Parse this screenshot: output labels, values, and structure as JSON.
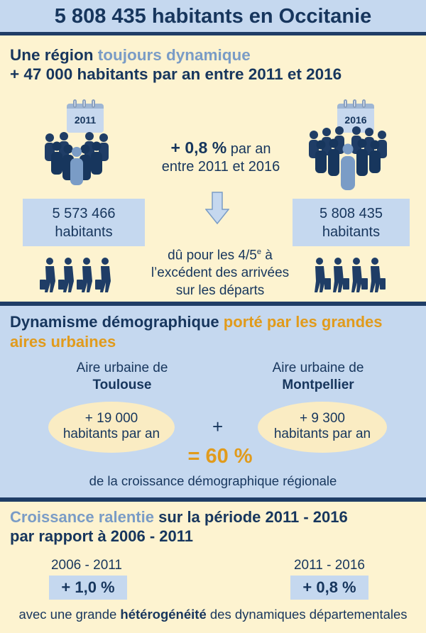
{
  "header": {
    "title": "5 808 435 habitants en Occitanie"
  },
  "section1": {
    "heading_part1": "Une région ",
    "heading_accent": "toujours dynamique",
    "heading_line2": "+ 47 000 habitants par an entre 2011 et 2016",
    "year_start": "2011",
    "year_end": "2016",
    "pop_start_value": "5 573 466",
    "pop_start_unit": "habitants",
    "pop_end_value": "5 808 435",
    "pop_end_unit": "habitants",
    "growth_rate": "+ 0,8 %",
    "growth_rate_suffix": " par an",
    "growth_period": "entre 2011 et 2016",
    "reason_line1_a": "dû pour les 4/5",
    "reason_line1_sup": "e",
    "reason_line1_b": " à",
    "reason_line2": "l’excédent des arrivées",
    "reason_line3": "sur les départs",
    "colors": {
      "navy": "#17365d",
      "accent_blue": "#7a9cc6",
      "box_blue": "#c5d8ef",
      "cream": "#fdf3d0"
    }
  },
  "section2": {
    "heading_part1": "Dynamisme démographique ",
    "heading_accent": "porté par les grandes aires urbaines",
    "area1_label": "Aire urbaine de",
    "area1_city": "Toulouse",
    "area2_label": "Aire urbaine de",
    "area2_city": "Montpellier",
    "area1_growth": "+ 19 000",
    "area1_unit": "habitants par an",
    "area2_growth": "+ 9 300",
    "area2_unit": "habitants par an",
    "plus_sign": "+",
    "share": "= 60 %",
    "share_caption": "de la croissance démographique régionale",
    "colors": {
      "accent_orange": "#e19b1c",
      "ellipse": "#faecc3"
    }
  },
  "section3": {
    "heading_accent": "Croissance ralentie",
    "heading_part1": " sur la période 2011 - 2016",
    "heading_line2": "par rapport à 2006 - 2011",
    "period1": "2006 - 2011",
    "rate1": "+ 1,0 %",
    "period2": "2011 - 2016",
    "rate2": "+ 0,8 %",
    "footer_a": "avec une grande ",
    "footer_bold": "hétérogénéité",
    "footer_b": " des dynamiques départementales"
  },
  "icons": [
    "calendar-icon",
    "crowd-icon",
    "down-arrow-icon",
    "travelers-icon"
  ]
}
